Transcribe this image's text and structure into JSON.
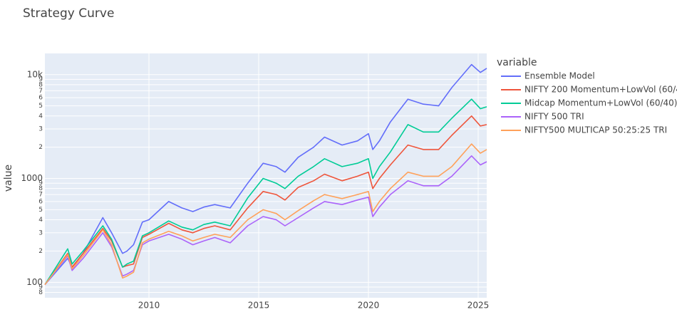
{
  "chart_data": {
    "type": "line",
    "title": "Strategy Curve",
    "ylabel": "value",
    "legend_title": "variable",
    "log_y": true,
    "grid": true,
    "legend": "right",
    "xlim": [
      2005.26,
      2025.39
    ],
    "xticks": [
      2010,
      2015,
      2020,
      2025
    ],
    "ylim": [
      71,
      16000
    ],
    "yticks": [
      {
        "value": 80,
        "label": "8"
      },
      {
        "value": 90,
        "label": "9"
      },
      100,
      {
        "value": 200,
        "label": "2"
      },
      {
        "value": 300,
        "label": "3"
      },
      {
        "value": 400,
        "label": "4"
      },
      {
        "value": 500,
        "label": "5"
      },
      {
        "value": 600,
        "label": "6"
      },
      {
        "value": 700,
        "label": "7"
      },
      {
        "value": 800,
        "label": "8"
      },
      {
        "value": 900,
        "label": "9"
      },
      1000,
      {
        "value": 2000,
        "label": "2"
      },
      {
        "value": 3000,
        "label": "3"
      },
      {
        "value": 4000,
        "label": "4"
      },
      {
        "value": 5000,
        "label": "5"
      },
      {
        "value": 6000,
        "label": "6"
      },
      {
        "value": 7000,
        "label": "7"
      },
      {
        "value": 8000,
        "label": "8"
      },
      {
        "value": 9000,
        "label": "9"
      },
      {
        "value": 10000,
        "label": "10k"
      }
    ],
    "x": [
      2005.26,
      2006.3,
      2006.5,
      2007,
      2007.9,
      2008.3,
      2008.8,
      2009.0,
      2009.3,
      2009.7,
      2010,
      2010.9,
      2011.5,
      2012,
      2012.5,
      2013,
      2013.7,
      2014.5,
      2015.2,
      2015.8,
      2016.2,
      2016.8,
      2017.5,
      2018.0,
      2018.8,
      2019.5,
      2020.0,
      2020.2,
      2020.5,
      2021,
      2021.8,
      2022.5,
      2023.2,
      2023.8,
      2024.7,
      2025.1,
      2025.39
    ],
    "series": [
      {
        "name": "Ensemble Model",
        "color": "#636efa",
        "values": [
          95,
          170,
          140,
          190,
          420,
          300,
          190,
          200,
          230,
          380,
          400,
          600,
          520,
          480,
          530,
          560,
          520,
          900,
          1400,
          1300,
          1150,
          1600,
          2000,
          2500,
          2100,
          2300,
          2700,
          1900,
          2300,
          3500,
          5800,
          5200,
          5000,
          7500,
          12500,
          10500,
          11500
        ]
      },
      {
        "name": "NIFTY 200 Momentum+LowVol (60/40)",
        "color": "#ef553b",
        "values": [
          95,
          190,
          140,
          190,
          330,
          250,
          140,
          145,
          150,
          270,
          290,
          370,
          320,
          300,
          330,
          350,
          320,
          520,
          750,
          700,
          620,
          820,
          950,
          1100,
          950,
          1050,
          1150,
          800,
          1000,
          1350,
          2100,
          1900,
          1900,
          2600,
          4000,
          3200,
          3300
        ]
      },
      {
        "name": "Midcap Momentum+LowVol (60/40)",
        "color": "#00cc96",
        "values": [
          95,
          210,
          150,
          200,
          350,
          260,
          140,
          150,
          160,
          280,
          300,
          390,
          340,
          320,
          360,
          380,
          350,
          650,
          1000,
          900,
          800,
          1050,
          1300,
          1550,
          1300,
          1400,
          1550,
          1000,
          1300,
          1800,
          3300,
          2800,
          2800,
          3800,
          5800,
          4700,
          4900
        ]
      },
      {
        "name": "NIFTY 500 TRI",
        "color": "#ab63fa",
        "values": [
          95,
          180,
          130,
          170,
          300,
          220,
          115,
          120,
          130,
          230,
          250,
          290,
          260,
          230,
          250,
          270,
          240,
          350,
          430,
          400,
          350,
          420,
          520,
          600,
          560,
          620,
          660,
          430,
          530,
          700,
          950,
          850,
          850,
          1050,
          1650,
          1350,
          1450
        ]
      },
      {
        "name": "NIFTY500 MULTICAP 50:25:25 TRI",
        "color": "#ffa15a",
        "values": [
          95,
          185,
          135,
          180,
          320,
          230,
          110,
          115,
          125,
          240,
          260,
          310,
          280,
          250,
          270,
          290,
          270,
          400,
          500,
          460,
          400,
          490,
          610,
          700,
          640,
          700,
          750,
          480,
          600,
          800,
          1150,
          1050,
          1050,
          1300,
          2150,
          1750,
          1900
        ]
      }
    ]
  }
}
